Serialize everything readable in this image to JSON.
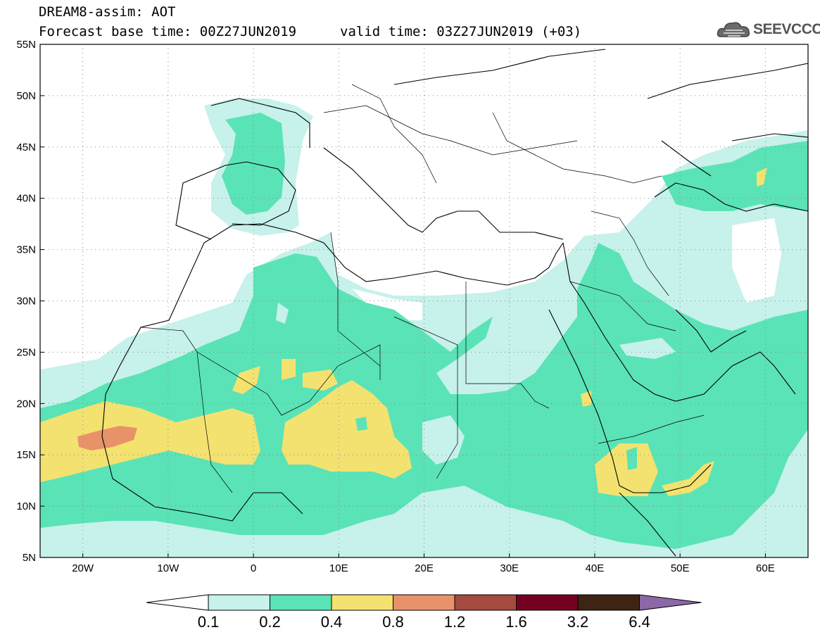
{
  "header": {
    "title": "DREAM8-assim: AOT",
    "base_time": "Forecast base time: 00Z27JUN2019",
    "valid_time": "valid time: 03Z27JUN2019 (+03)"
  },
  "logo": {
    "text": "SEEVCCC",
    "icon": "cloud-icon"
  },
  "map": {
    "lat_labels": [
      "55N",
      "50N",
      "45N",
      "40N",
      "35N",
      "30N",
      "25N",
      "20N",
      "15N",
      "10N",
      "5N"
    ],
    "lon_labels": [
      "20W",
      "10W",
      "0",
      "10E",
      "20E",
      "30E",
      "40E",
      "50E",
      "60E"
    ],
    "lon_range": [
      -25,
      65
    ],
    "lat_range": [
      5,
      55
    ],
    "grid": "dotted",
    "projection": "lat-lon"
  },
  "colorbar": {
    "labels": [
      "0.1",
      "0.2",
      "0.4",
      "0.8",
      "1.2",
      "1.6",
      "3.2",
      "6.4"
    ],
    "colors": [
      "#c7f1eb",
      "#5ae3b6",
      "#f3e270",
      "#e8926a",
      "#a44a3f",
      "#76001f",
      "#3e2413",
      "#8c68a8"
    ],
    "below_min_color": "#ffffff"
  }
}
